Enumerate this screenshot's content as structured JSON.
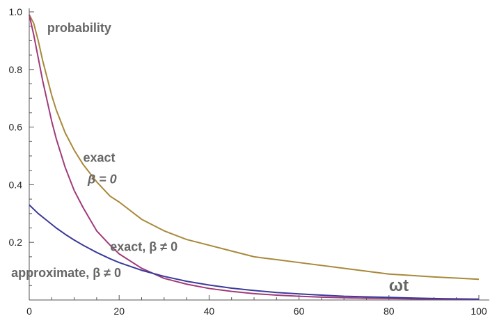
{
  "chart_data": {
    "type": "line",
    "xlabel": "ωt",
    "ylabel": "probability",
    "xlim": [
      0,
      100
    ],
    "ylim": [
      0,
      1.0
    ],
    "x_ticks": [
      "0",
      "20",
      "40",
      "60",
      "80",
      "100"
    ],
    "y_ticks": [
      "0.2",
      "0.4",
      "0.6",
      "0.8",
      "1.0"
    ],
    "grid": false,
    "series": [
      {
        "name": "exact β = 0",
        "color": "#a8893a",
        "x": [
          0,
          1,
          2,
          3,
          4,
          5,
          6,
          8,
          10,
          12,
          15,
          18,
          20,
          25,
          30,
          35,
          40,
          45,
          50,
          55,
          60,
          65,
          70,
          75,
          80,
          85,
          90,
          95,
          100
        ],
        "y": [
          0.99,
          0.96,
          0.9,
          0.83,
          0.77,
          0.71,
          0.66,
          0.58,
          0.52,
          0.47,
          0.41,
          0.36,
          0.34,
          0.28,
          0.24,
          0.21,
          0.19,
          0.17,
          0.15,
          0.14,
          0.13,
          0.12,
          0.11,
          0.1,
          0.09,
          0.085,
          0.08,
          0.076,
          0.072
        ]
      },
      {
        "name": "exact, β ≠ 0",
        "color": "#a03a7a",
        "x": [
          0,
          1,
          2,
          3,
          4,
          5,
          6,
          8,
          10,
          12,
          15,
          18,
          20,
          25,
          30,
          35,
          40,
          45,
          50,
          55,
          60,
          65,
          70,
          75,
          80,
          85,
          90,
          95,
          100
        ],
        "y": [
          0.99,
          0.92,
          0.84,
          0.76,
          0.69,
          0.62,
          0.56,
          0.46,
          0.38,
          0.32,
          0.24,
          0.19,
          0.16,
          0.11,
          0.075,
          0.055,
          0.04,
          0.03,
          0.022,
          0.017,
          0.013,
          0.01,
          0.008,
          0.006,
          0.005,
          0.004,
          0.003,
          0.002,
          0.002
        ]
      },
      {
        "name": "approximate, β ≠ 0",
        "color": "#3a3a9a",
        "x": [
          0,
          2,
          4,
          6,
          8,
          10,
          12,
          15,
          18,
          20,
          25,
          30,
          35,
          40,
          45,
          50,
          55,
          60,
          65,
          70,
          75,
          80,
          85,
          90,
          95,
          100
        ],
        "y": [
          0.33,
          0.3,
          0.275,
          0.25,
          0.228,
          0.208,
          0.19,
          0.165,
          0.143,
          0.13,
          0.103,
          0.082,
          0.065,
          0.052,
          0.041,
          0.033,
          0.026,
          0.021,
          0.017,
          0.013,
          0.011,
          0.009,
          0.007,
          0.005,
          0.004,
          0.003
        ]
      }
    ],
    "annotations": [
      {
        "text": "probability",
        "x": 4,
        "y": 0.93,
        "italic": false
      },
      {
        "text": "exact",
        "x": 12,
        "y": 0.48,
        "italic": false
      },
      {
        "text": "β = 0",
        "x": 13,
        "y": 0.405,
        "italic": true
      },
      {
        "text": "exact, β ≠ 0",
        "x": 18,
        "y": 0.17,
        "italic": false
      },
      {
        "text": "approximate, β ≠ 0",
        "x": -4,
        "y": 0.08,
        "italic": false
      }
    ]
  }
}
